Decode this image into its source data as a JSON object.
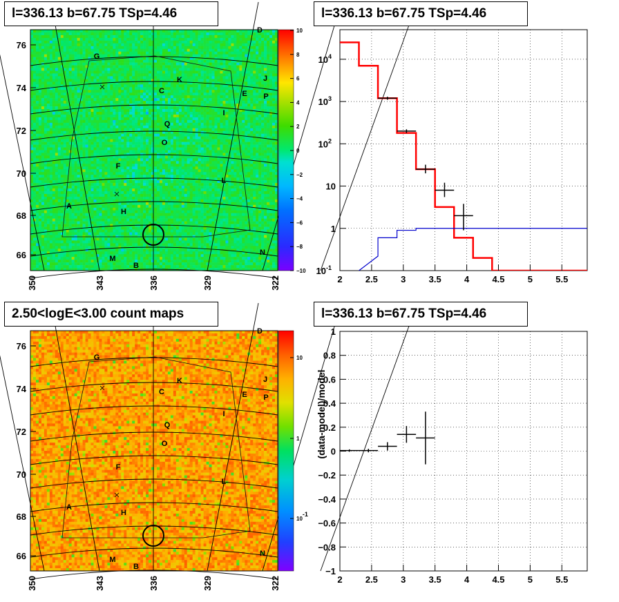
{
  "titles": {
    "tl": "l=336.13 b=67.75 TSp=4.46",
    "tr": "l=336.13 b=67.75 TSp=4.46",
    "bl": "2.50<logE<3.00 count maps",
    "br": "l=336.13 b=67.75 TSp=4.46"
  },
  "chart_data": [
    {
      "type": "heatmap",
      "panel": "top-left",
      "title": "l=336.13 b=67.75 TSp=4.46",
      "x_ticks": [
        "350",
        "343",
        "336",
        "329",
        "322"
      ],
      "y_ticks": [
        "76",
        "74",
        "72",
        "70",
        "68",
        "66"
      ],
      "colorbar_ticks": [
        "10",
        "8",
        "6",
        "4",
        "2",
        "0",
        "−2",
        "−4",
        "−6",
        "−8",
        "−10"
      ],
      "colorbar_range": [
        -10,
        10
      ],
      "region_labels": [
        "D",
        "G",
        "K",
        "C",
        "J",
        "E",
        "P",
        "I",
        "Q",
        "O",
        "F",
        "L",
        "A",
        "H",
        "N",
        "M",
        "B"
      ],
      "source_marker": "circle at l=336, b≈67"
    },
    {
      "type": "line",
      "panel": "top-right",
      "title": "l=336.13 b=67.75 TSp=4.46",
      "yscale": "log",
      "xlim": [
        2,
        5.9
      ],
      "ylim": [
        0.1,
        50000
      ],
      "x_ticks": [
        "2",
        "2.5",
        "3",
        "3.5",
        "4",
        "4.5",
        "5",
        "5.5"
      ],
      "y_ticks": [
        "10^4",
        "10^3",
        "10^2",
        "10",
        "1",
        "10^-1"
      ],
      "series": [
        {
          "style": "histogram",
          "color": "#ff0000",
          "bin_edges": [
            2.0,
            2.3,
            2.6,
            2.9,
            3.2,
            3.5,
            3.8,
            4.1,
            4.4,
            5.9
          ],
          "values": [
            25000,
            7000,
            1200,
            180,
            25,
            3.2,
            0.6,
            0.2,
            0.1
          ]
        },
        {
          "style": "histogram",
          "color": "#0000cc",
          "bin_edges": [
            2.3,
            2.6,
            2.9,
            3.2,
            5.9
          ],
          "values": [
            0.22,
            0.6,
            0.9,
            1.0
          ]
        },
        {
          "style": "errorbars",
          "color": "#000000",
          "points": [
            {
              "x": 2.75,
              "y": 1200,
              "xerr": 0.15,
              "ylo": 1100,
              "yhi": 1300
            },
            {
              "x": 3.05,
              "y": 200,
              "xerr": 0.15,
              "ylo": 180,
              "yhi": 220
            },
            {
              "x": 3.35,
              "y": 25,
              "xerr": 0.15,
              "ylo": 20,
              "yhi": 32
            },
            {
              "x": 3.65,
              "y": 8,
              "xerr": 0.15,
              "ylo": 5.5,
              "yhi": 12
            },
            {
              "x": 3.95,
              "y": 2,
              "xerr": 0.15,
              "ylo": 0.9,
              "yhi": 3.8
            }
          ]
        }
      ]
    },
    {
      "type": "heatmap",
      "panel": "bottom-left",
      "title": "2.50<logE<3.00 count maps",
      "x_ticks": [
        "350",
        "343",
        "336",
        "329",
        "322"
      ],
      "y_ticks": [
        "76",
        "74",
        "72",
        "70",
        "68",
        "66"
      ],
      "colorbar_ticks": [
        "10",
        "1",
        "10^-1"
      ],
      "colorbar_scale": "log",
      "region_labels": [
        "D",
        "G",
        "K",
        "C",
        "J",
        "E",
        "P",
        "I",
        "Q",
        "O",
        "F",
        "L",
        "A",
        "H",
        "N",
        "M",
        "B"
      ]
    },
    {
      "type": "scatter",
      "panel": "bottom-right",
      "title": "l=336.13 b=67.75 TSp=4.46",
      "ylabel": "(data-model)/model",
      "xlim": [
        2,
        5.9
      ],
      "ylim": [
        -1,
        1
      ],
      "x_ticks": [
        "2",
        "2.5",
        "3",
        "3.5",
        "4",
        "4.5",
        "5",
        "5.5"
      ],
      "y_ticks": [
        "1",
        "0.8",
        "0.6",
        "0.4",
        "0.2",
        "0",
        "−0.2",
        "−0.4",
        "−0.6",
        "−0.8",
        "−1"
      ],
      "points": [
        {
          "x": 2.15,
          "y": 0.005,
          "xerr": 0.15,
          "yerr": 0.01
        },
        {
          "x": 2.45,
          "y": 0.005,
          "xerr": 0.15,
          "yerr": 0.015
        },
        {
          "x": 2.75,
          "y": 0.04,
          "xerr": 0.15,
          "yerr": 0.035
        },
        {
          "x": 3.05,
          "y": 0.14,
          "xerr": 0.15,
          "yerr": 0.07
        },
        {
          "x": 3.35,
          "y": 0.11,
          "xerr": 0.15,
          "yerr": 0.22
        }
      ]
    }
  ]
}
